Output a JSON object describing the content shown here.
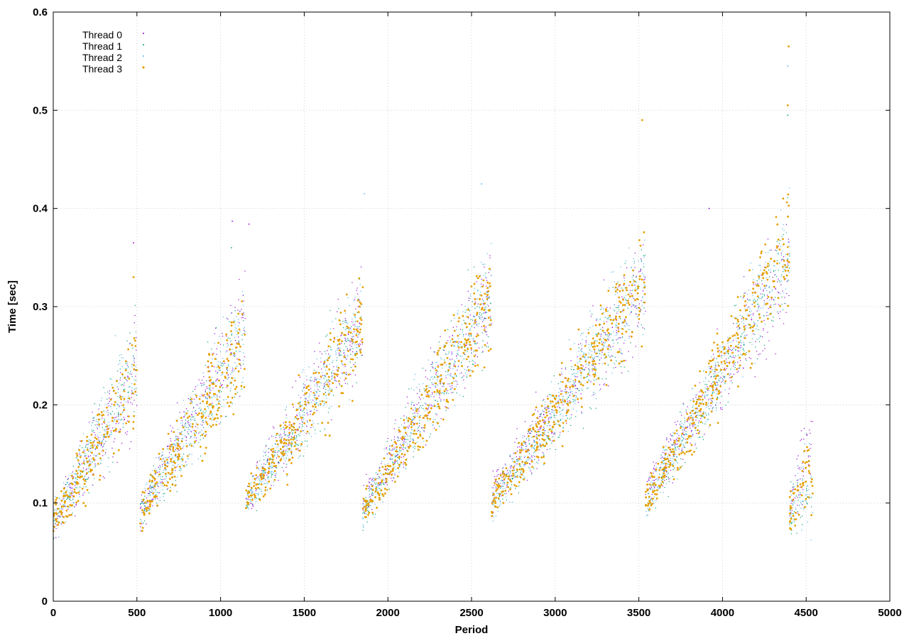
{
  "chart_data": {
    "type": "scatter",
    "title": "",
    "xlabel": "Period",
    "ylabel": "Time [sec]",
    "xlim": [
      0,
      5000
    ],
    "ylim": [
      0,
      0.6
    ],
    "xticks": [
      "0",
      "500",
      "1000",
      "1500",
      "2000",
      "2500",
      "3000",
      "3500",
      "4000",
      "4500",
      "5000"
    ],
    "yticks": [
      "0",
      "0.1",
      "0.2",
      "0.3",
      "0.4",
      "0.5",
      "0.6"
    ],
    "grid": true,
    "legend_position": "top-left",
    "series": [
      {
        "name": "Thread 0",
        "color": "#9400d3",
        "marker_size": "small",
        "cycles": [
          {
            "x0": 0,
            "x1": 500,
            "y0": 0.08,
            "y1": 0.23
          },
          {
            "x0": 520,
            "x1": 1150,
            "y0": 0.09,
            "y1": 0.29
          },
          {
            "x0": 1150,
            "x1": 1850,
            "y0": 0.1,
            "y1": 0.29
          },
          {
            "x0": 1850,
            "x1": 2620,
            "y0": 0.1,
            "y1": 0.31
          },
          {
            "x0": 2620,
            "x1": 3540,
            "y0": 0.11,
            "y1": 0.32
          },
          {
            "x0": 3540,
            "x1": 4400,
            "y0": 0.11,
            "y1": 0.34
          },
          {
            "x0": 4400,
            "x1": 4540,
            "y0": 0.1,
            "y1": 0.17
          }
        ],
        "extremes": [
          {
            "x": 480,
            "y": 0.365
          },
          {
            "x": 1070,
            "y": 0.387
          },
          {
            "x": 1170,
            "y": 0.384
          },
          {
            "x": 3920,
            "y": 0.4
          }
        ]
      },
      {
        "name": "Thread 1",
        "color": "#009e73",
        "marker_size": "small",
        "cycles": [
          {
            "x0": 0,
            "x1": 500,
            "y0": 0.08,
            "y1": 0.24
          },
          {
            "x0": 520,
            "x1": 1150,
            "y0": 0.09,
            "y1": 0.27
          },
          {
            "x0": 1150,
            "x1": 1850,
            "y0": 0.1,
            "y1": 0.28
          },
          {
            "x0": 1850,
            "x1": 2620,
            "y0": 0.09,
            "y1": 0.31
          },
          {
            "x0": 2620,
            "x1": 3540,
            "y0": 0.1,
            "y1": 0.32
          },
          {
            "x0": 3540,
            "x1": 4400,
            "y0": 0.1,
            "y1": 0.35
          },
          {
            "x0": 4400,
            "x1": 4540,
            "y0": 0.09,
            "y1": 0.13
          }
        ],
        "extremes": [
          {
            "x": 1065,
            "y": 0.36
          },
          {
            "x": 3520,
            "y": 0.49
          },
          {
            "x": 4390,
            "y": 0.495
          }
        ]
      },
      {
        "name": "Thread 2",
        "color": "#56b4e9",
        "marker_size": "small",
        "cycles": [
          {
            "x0": 0,
            "x1": 500,
            "y0": 0.08,
            "y1": 0.24
          },
          {
            "x0": 520,
            "x1": 1150,
            "y0": 0.09,
            "y1": 0.28
          },
          {
            "x0": 1150,
            "x1": 1850,
            "y0": 0.1,
            "y1": 0.29
          },
          {
            "x0": 1850,
            "x1": 2620,
            "y0": 0.09,
            "y1": 0.32
          },
          {
            "x0": 2620,
            "x1": 3540,
            "y0": 0.1,
            "y1": 0.33
          },
          {
            "x0": 3540,
            "x1": 4400,
            "y0": 0.1,
            "y1": 0.36
          },
          {
            "x0": 4400,
            "x1": 4540,
            "y0": 0.09,
            "y1": 0.13
          }
        ],
        "extremes": [
          {
            "x": 1860,
            "y": 0.415
          },
          {
            "x": 2560,
            "y": 0.425
          },
          {
            "x": 4390,
            "y": 0.545
          }
        ]
      },
      {
        "name": "Thread 3",
        "color": "#e69f00",
        "marker_size": "medium",
        "cycles": [
          {
            "x0": 0,
            "x1": 500,
            "y0": 0.08,
            "y1": 0.23
          },
          {
            "x0": 520,
            "x1": 1150,
            "y0": 0.09,
            "y1": 0.27
          },
          {
            "x0": 1150,
            "x1": 1850,
            "y0": 0.1,
            "y1": 0.28
          },
          {
            "x0": 1850,
            "x1": 2620,
            "y0": 0.09,
            "y1": 0.31
          },
          {
            "x0": 2620,
            "x1": 3540,
            "y0": 0.1,
            "y1": 0.33
          },
          {
            "x0": 3540,
            "x1": 4400,
            "y0": 0.1,
            "y1": 0.36
          },
          {
            "x0": 4400,
            "x1": 4540,
            "y0": 0.09,
            "y1": 0.13
          }
        ],
        "extremes": [
          {
            "x": 480,
            "y": 0.33
          },
          {
            "x": 3520,
            "y": 0.49
          },
          {
            "x": 4390,
            "y": 0.505
          },
          {
            "x": 4395,
            "y": 0.565
          }
        ]
      }
    ]
  }
}
